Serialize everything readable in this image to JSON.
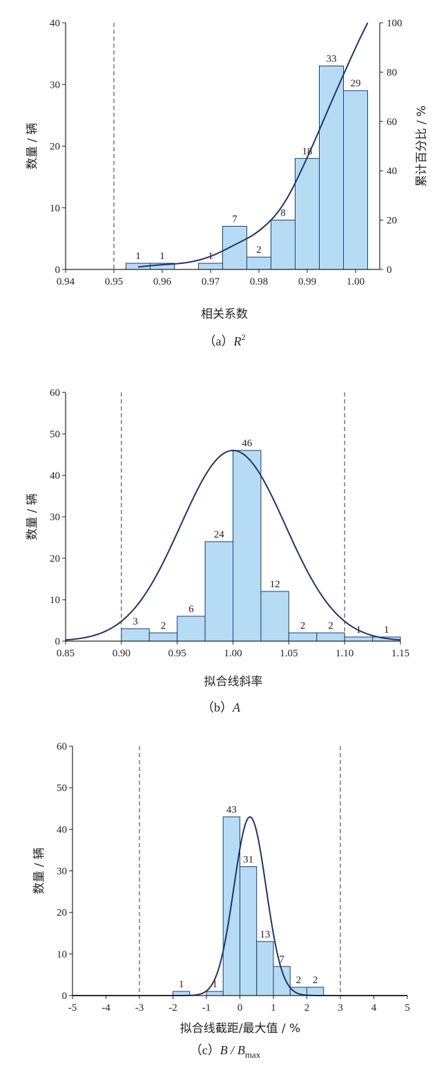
{
  "chart_data": [
    {
      "type": "bar",
      "caption": {
        "prefix": "（a）",
        "var": "R",
        "sup": "2",
        "suffix": ""
      },
      "xlabel": "相关系数",
      "ylabel": "数量 / 辆",
      "y2label": "累计百分比 / %",
      "xlim": [
        0.94,
        1.005
      ],
      "ylim": [
        0,
        40
      ],
      "y2lim": [
        0,
        100
      ],
      "xticks": [
        "0.94",
        "0.95",
        "0.96",
        "0.97",
        "0.98",
        "0.99",
        "1.00"
      ],
      "yticks": [
        "0",
        "10",
        "20",
        "30",
        "40"
      ],
      "y2ticks": [
        "0",
        "20",
        "40",
        "60",
        "80",
        "100"
      ],
      "reference_lines_x": [
        0.95
      ],
      "bins": [
        {
          "start": 0.9525,
          "end": 0.9575,
          "value": 1,
          "label": "1"
        },
        {
          "start": 0.9575,
          "end": 0.9625,
          "value": 1,
          "label": "1"
        },
        {
          "start": 0.9675,
          "end": 0.9725,
          "value": 1,
          "label": "1"
        },
        {
          "start": 0.9725,
          "end": 0.9775,
          "value": 7,
          "label": "7"
        },
        {
          "start": 0.9775,
          "end": 0.9825,
          "value": 2,
          "label": "2"
        },
        {
          "start": 0.9825,
          "end": 0.9875,
          "value": 8,
          "label": "8"
        },
        {
          "start": 0.9875,
          "end": 0.9925,
          "value": 18,
          "label": "18"
        },
        {
          "start": 0.9925,
          "end": 0.9975,
          "value": 33,
          "label": "33"
        },
        {
          "start": 0.9975,
          "end": 1.0025,
          "value": 29,
          "label": "29"
        }
      ],
      "cumulative_curve": {
        "axis": "right",
        "x": [
          0.955,
          0.96,
          0.965,
          0.97,
          0.975,
          0.98,
          0.985,
          0.99,
          0.995,
          1.0,
          1.0025
        ],
        "y": [
          1,
          2,
          2.5,
          5,
          10,
          15,
          25,
          45,
          68,
          90,
          100
        ]
      }
    },
    {
      "type": "bar",
      "caption": {
        "prefix": "（b）",
        "var": "A",
        "sup": "",
        "suffix": ""
      },
      "xlabel": "拟合线斜率",
      "ylabel": "数量 / 辆",
      "xlim": [
        0.85,
        1.15
      ],
      "ylim": [
        0,
        60
      ],
      "xticks": [
        "0.85",
        "0.90",
        "0.95",
        "1.00",
        "1.05",
        "1.10",
        "1.15"
      ],
      "yticks": [
        "0",
        "10",
        "20",
        "30",
        "40",
        "50",
        "60"
      ],
      "reference_lines_x": [
        0.9,
        1.1
      ],
      "bins": [
        {
          "start": 0.9,
          "end": 0.925,
          "value": 3,
          "label": "3"
        },
        {
          "start": 0.925,
          "end": 0.95,
          "value": 2,
          "label": "2"
        },
        {
          "start": 0.95,
          "end": 0.975,
          "value": 6,
          "label": "6"
        },
        {
          "start": 0.975,
          "end": 1.0,
          "value": 24,
          "label": "24"
        },
        {
          "start": 1.0,
          "end": 1.025,
          "value": 46,
          "label": "46"
        },
        {
          "start": 1.025,
          "end": 1.05,
          "value": 12,
          "label": "12"
        },
        {
          "start": 1.05,
          "end": 1.075,
          "value": 2,
          "label": "2"
        },
        {
          "start": 1.075,
          "end": 1.1,
          "value": 2,
          "label": "2"
        },
        {
          "start": 1.1,
          "end": 1.125,
          "value": 1,
          "label": "1"
        },
        {
          "start": 1.125,
          "end": 1.15,
          "value": 1,
          "label": "1"
        }
      ],
      "normal_curve": {
        "mean": 1.0,
        "sigma": 0.047,
        "peak": 46
      }
    },
    {
      "type": "bar",
      "caption": {
        "prefix": "（c）",
        "var": "B",
        "sup": "",
        "suffix": "max"
      },
      "xlabel": "拟合线截距/最大值 / %",
      "ylabel": "数量 / 辆",
      "xlim": [
        -5,
        5
      ],
      "ylim": [
        0,
        60
      ],
      "xticks": [
        "-5",
        "-4",
        "-3",
        "-2",
        "-1",
        "0",
        "1",
        "2",
        "3",
        "4",
        "5"
      ],
      "yticks": [
        "0",
        "10",
        "20",
        "30",
        "40",
        "50",
        "60"
      ],
      "reference_lines_x": [
        -3,
        3
      ],
      "bins": [
        {
          "start": -2.0,
          "end": -1.5,
          "value": 1,
          "label": "1"
        },
        {
          "start": -1.0,
          "end": -0.5,
          "value": 1,
          "label": "1"
        },
        {
          "start": -0.5,
          "end": 0.0,
          "value": 43,
          "label": "43"
        },
        {
          "start": 0.0,
          "end": 0.5,
          "value": 31,
          "label": "31"
        },
        {
          "start": 0.5,
          "end": 1.0,
          "value": 13,
          "label": "13"
        },
        {
          "start": 1.0,
          "end": 1.5,
          "value": 7,
          "label": "7"
        },
        {
          "start": 1.5,
          "end": 2.0,
          "value": 2,
          "label": "2"
        },
        {
          "start": 2.0,
          "end": 2.5,
          "value": 2,
          "label": "2"
        }
      ],
      "normal_curve": {
        "mean": 0.3,
        "sigma": 0.48,
        "peak": 43
      }
    }
  ],
  "colors": {
    "bar_fill": "#b6dcf5",
    "bar_stroke": "#1e3a6e",
    "curve": "#1f3366",
    "axis": "#222222",
    "ref_line": "#333333"
  }
}
